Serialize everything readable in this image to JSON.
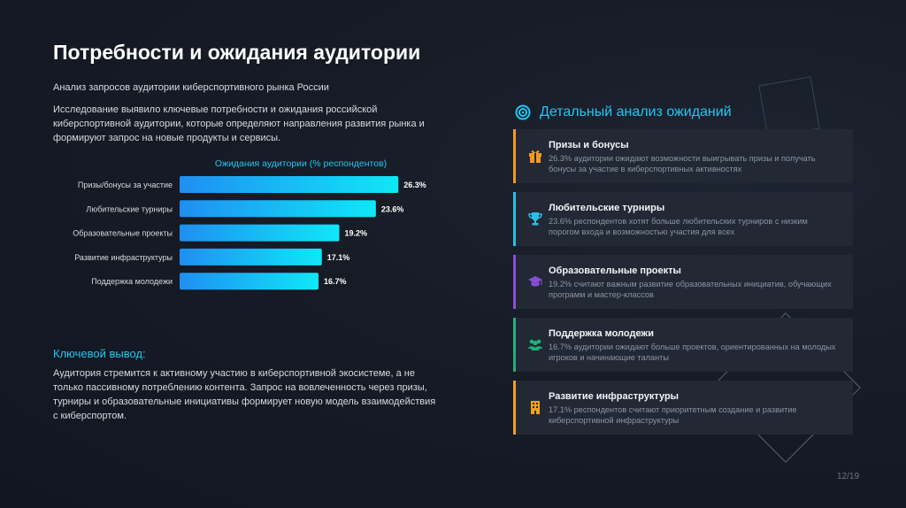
{
  "title": "Потребности и ожидания аудитории",
  "subtitle": "Анализ запросов аудитории киберспортивного рынка России",
  "intro": "Исследование выявило ключевые потребности и ожидания российской киберспортивной аудитории, которые определяют направления развития рынка и формируют запрос на новые продукты и сервисы.",
  "chart_data": {
    "type": "bar",
    "orientation": "horizontal",
    "title": "Ожидания аудитории (% респондентов)",
    "categories": [
      "Призы/бонусы за участие",
      "Любительские турниры",
      "Образовательные проекты",
      "Развитие инфраструктуры",
      "Поддержка молодежи"
    ],
    "values": [
      26.3,
      23.6,
      19.2,
      17.1,
      16.7
    ],
    "value_labels": [
      "26.3%",
      "23.6%",
      "19.2%",
      "17.1%",
      "16.7%"
    ],
    "xlim": [
      0,
      30
    ],
    "grid": false,
    "bar_color_start": "#1f8ff2",
    "bar_color_end": "#10e7f7"
  },
  "conclusion": {
    "title": "Ключевой вывод:",
    "text": "Аудитория стремится к активному участию в киберспортивной экосистеме, а не только пассивному потреблению контента. Запрос на вовлеченность через призы, турниры и образовательные инициативы формирует новую модель взаимодействия с киберспортом."
  },
  "right": {
    "title": "Детальный анализ ожиданий",
    "title_icon": "target-icon",
    "accent": "#22c6f2",
    "cards": [
      {
        "title": "Призы и бонусы",
        "desc": "26.3% аудитории ожидают возможности выигрывать призы и получать бонусы за участие в киберспортивных активностях",
        "icon": "gift-icon",
        "color": "#f39a1e"
      },
      {
        "title": "Любительские турниры",
        "desc": "23.6% респондентов хотят больше любительских турниров с низким порогом входа и возможностью участия для всех",
        "icon": "trophy-icon",
        "color": "#2bbde6"
      },
      {
        "title": "Образовательные проекты",
        "desc": "19.2% считают важным развитие образовательных инициатив, обучающих программ и мастер-классов",
        "icon": "graduation-cap-icon",
        "color": "#8a4fd6"
      },
      {
        "title": "Поддержка молодежи",
        "desc": "16.7% аудитории ожидают больше проектов, ориентированных на молодых игроков и начинающие таланты",
        "icon": "users-icon",
        "color": "#22b07a"
      },
      {
        "title": "Развитие инфраструктуры",
        "desc": "17.1% респондентов считают приоритетным создание и развитие киберспортивной инфраструктуры",
        "icon": "building-icon",
        "color": "#f0a11a"
      }
    ]
  },
  "page_number": "12/19"
}
